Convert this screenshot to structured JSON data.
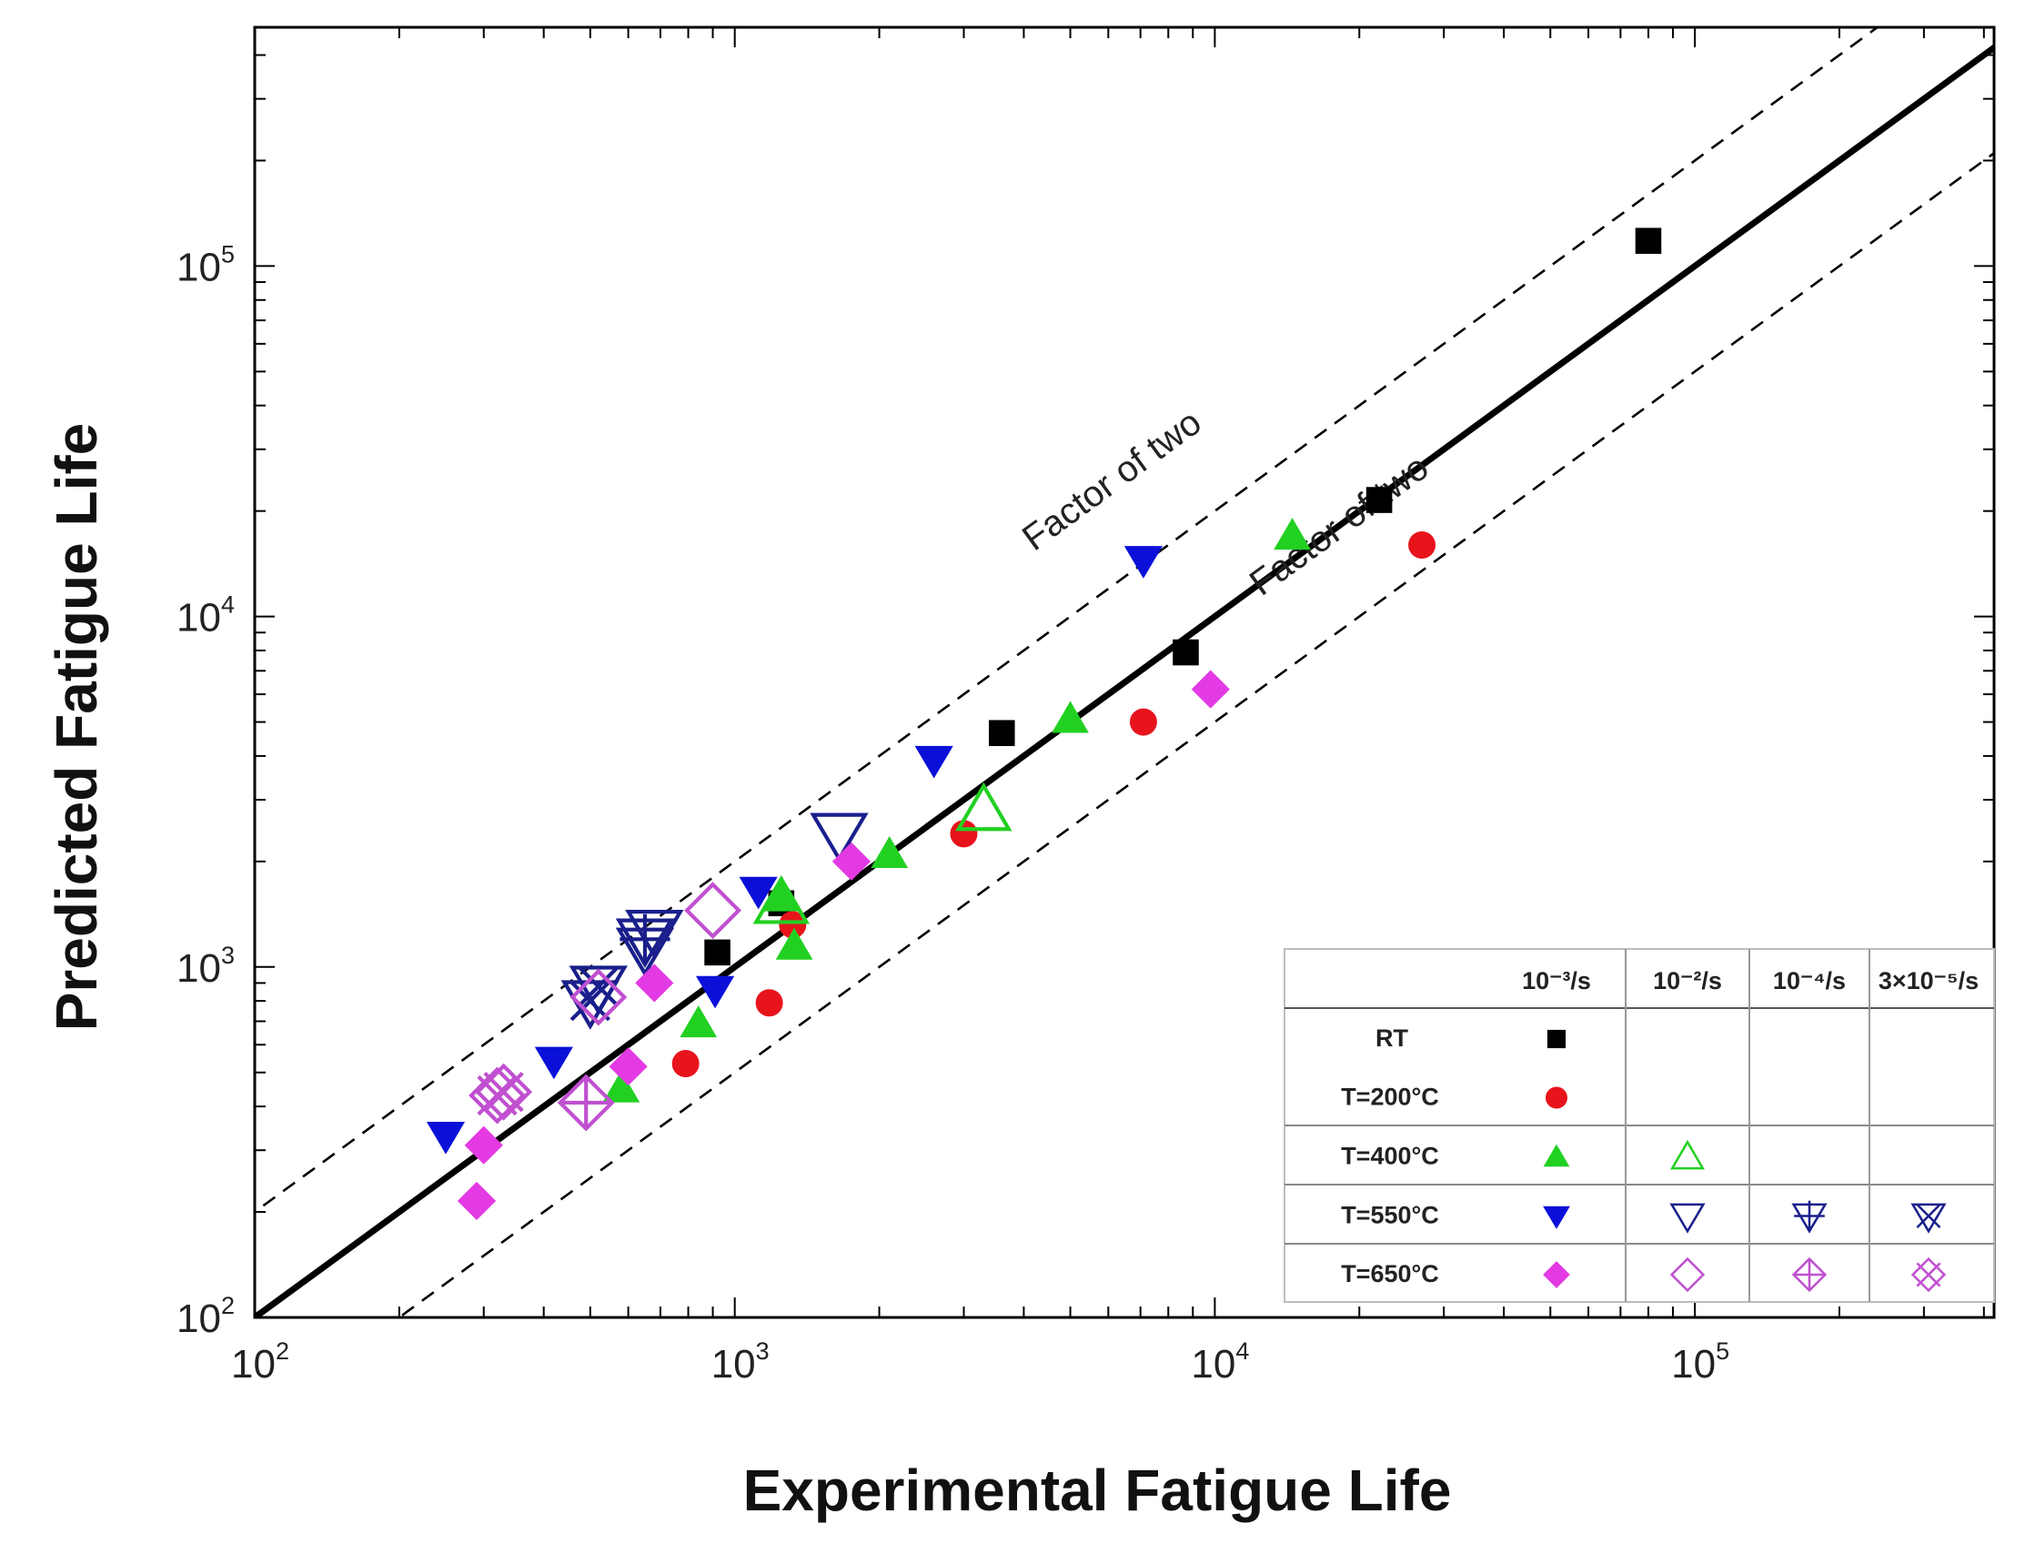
{
  "chart_data": {
    "type": "scatter",
    "title": "",
    "xlabel": "Experimental Fatigue Life",
    "ylabel": "Predicted Fatigue Life",
    "xscale": "log",
    "yscale": "log",
    "xlim": [
      100,
      420000
    ],
    "ylim": [
      100,
      480000
    ],
    "x_ticks": [
      {
        "value": 100,
        "base": "10",
        "exp": "2"
      },
      {
        "value": 1000,
        "base": "10",
        "exp": "3"
      },
      {
        "value": 10000,
        "base": "10",
        "exp": "4"
      },
      {
        "value": 100000,
        "base": "10",
        "exp": "5"
      }
    ],
    "y_ticks": [
      {
        "value": 100,
        "base": "10",
        "exp": "2"
      },
      {
        "value": 1000,
        "base": "10",
        "exp": "3"
      },
      {
        "value": 10000,
        "base": "10",
        "exp": "4"
      },
      {
        "value": 100000,
        "base": "10",
        "exp": "5"
      }
    ],
    "reference_lines": [
      {
        "name": "perfect-agreement",
        "factor": 1,
        "style": "solid"
      },
      {
        "name": "upper-factor-of-two",
        "factor": 2,
        "style": "dashed"
      },
      {
        "name": "lower-factor-of-two",
        "factor": 0.5,
        "style": "dashed"
      }
    ],
    "annotations": [
      {
        "text": "Factor of two",
        "line": "upper-factor-of-two"
      },
      {
        "text": "Factor of two",
        "line": "lower-factor-of-two"
      }
    ],
    "legend": {
      "position": "bottom-right",
      "columns": [
        "10⁻³/s",
        "10⁻²/s",
        "10⁻⁴/s",
        "3×10⁻⁵/s"
      ],
      "rows": [
        "RT",
        "T=200°C",
        "T=400°C",
        "T=550°C",
        "T=650°C"
      ]
    },
    "colors": {
      "RT": "#000000",
      "T=200°C": "#e8141c",
      "T=400°C": "#22d022",
      "T=550°C": "#0a10d8",
      "T=650°C": "#e33ae3",
      "T=550°C-open": "#1a1f8c",
      "T=650°C-open": "#c050d0"
    },
    "series": [
      {
        "name": "RT 10⁻³/s",
        "temp": "RT",
        "rate": "10⁻³/s",
        "marker": "square-filled",
        "points": [
          [
            80000,
            118000
          ],
          [
            22000,
            21500
          ],
          [
            8700,
            7900
          ],
          [
            3600,
            4650
          ],
          [
            920,
            1100
          ],
          [
            1250,
            1520
          ]
        ]
      },
      {
        "name": "T=200°C 10⁻³/s",
        "temp": "T=200°C",
        "rate": "10⁻³/s",
        "marker": "circle-filled",
        "points": [
          [
            27000,
            16000
          ],
          [
            7100,
            5000
          ],
          [
            3000,
            2400
          ],
          [
            1180,
            790
          ],
          [
            790,
            530
          ],
          [
            1320,
            1320
          ]
        ]
      },
      {
        "name": "T=400°C 10⁻³/s",
        "temp": "T=400°C",
        "rate": "10⁻³/s",
        "marker": "triangle-up-filled",
        "points": [
          [
            14500,
            17000
          ],
          [
            5000,
            5100
          ],
          [
            2100,
            2100
          ],
          [
            1330,
            1150
          ],
          [
            840,
            690
          ],
          [
            580,
            450
          ],
          [
            1250,
            1580
          ]
        ]
      },
      {
        "name": "T=400°C 10⁻²/s",
        "temp": "T=400°C",
        "rate": "10⁻²/s",
        "marker": "triangle-up-open",
        "points": [
          [
            3300,
            2800
          ],
          [
            1250,
            1520
          ]
        ]
      },
      {
        "name": "T=550°C 10⁻³/s",
        "temp": "T=550°C",
        "rate": "10⁻³/s",
        "marker": "triangle-down-filled",
        "points": [
          [
            7100,
            14500
          ],
          [
            2600,
            3900
          ],
          [
            1120,
            1650
          ],
          [
            910,
            860
          ],
          [
            420,
            540
          ],
          [
            250,
            330
          ]
        ]
      },
      {
        "name": "T=550°C 10⁻²/s",
        "temp": "T=550°C",
        "rate": "10⁻²/s",
        "marker": "triangle-down-open",
        "points": [
          [
            1650,
            2400
          ],
          [
            680,
            1270
          ],
          [
            650,
            1130
          ]
        ]
      },
      {
        "name": "T=550°C 10⁻⁴/s",
        "temp": "T=550°C",
        "rate": "10⁻⁴/s",
        "marker": "triangle-down-plus",
        "points": [
          [
            650,
            1200
          ]
        ]
      },
      {
        "name": "T=550°C 3×10⁻⁵/s",
        "temp": "T=550°C",
        "rate": "3×10⁻⁵/s",
        "marker": "triangle-down-cross",
        "points": [
          [
            520,
            880
          ],
          [
            500,
            800
          ]
        ]
      },
      {
        "name": "T=650°C 10⁻³/s",
        "temp": "T=650°C",
        "rate": "10⁻³/s",
        "marker": "diamond-filled",
        "points": [
          [
            9800,
            6200
          ],
          [
            1750,
            2000
          ],
          [
            680,
            900
          ],
          [
            600,
            520
          ],
          [
            300,
            310
          ],
          [
            290,
            215
          ]
        ]
      },
      {
        "name": "T=650°C 10⁻²/s",
        "temp": "T=650°C",
        "rate": "10⁻²/s",
        "marker": "diamond-open",
        "points": [
          [
            900,
            1450
          ],
          [
            520,
            820
          ]
        ]
      },
      {
        "name": "T=650°C 10⁻⁴/s",
        "temp": "T=650°C",
        "rate": "10⁻⁴/s",
        "marker": "diamond-plus",
        "points": [
          [
            490,
            410
          ]
        ]
      },
      {
        "name": "T=650°C 3×10⁻⁵/s",
        "temp": "T=650°C",
        "rate": "3×10⁻⁵/s",
        "marker": "diamond-cross",
        "points": [
          [
            320,
            430
          ],
          [
            330,
            440
          ]
        ]
      }
    ]
  }
}
